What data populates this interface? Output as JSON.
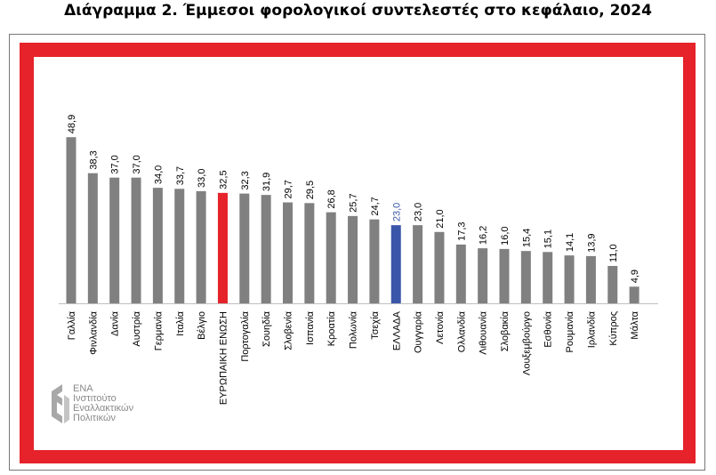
{
  "title": "Διάγραμμα 2. Έμμεσοι φορολογικοί συντελεστές στο κεφάλαιο, 2024",
  "logo": {
    "abbr": "ΕΝΑ",
    "line1": "Ινστιτούτο",
    "line2": "Εναλλακτικών",
    "line3": "Πολιτικών"
  },
  "colors": {
    "default": "#808080",
    "eu": "#e6222a",
    "greece": "#3a56a8",
    "frame": "#e6222a",
    "greece_label": "#3a56a8"
  },
  "chart_data": {
    "type": "bar",
    "title": "Διάγραμμα 2. Έμμεσοι φορολογικοί συντελεστές στο κεφάλαιο, 2024",
    "xlabel": "",
    "ylabel": "",
    "ylim": [
      0,
      52
    ],
    "grid": false,
    "categories": [
      "Γαλλία",
      "Φινλανδία",
      "Δανία",
      "Αυστρία",
      "Γερμανία",
      "Ιταλία",
      "Βέλγιο",
      "ΕΥΡΩΠΑΙΚΗ ΕΝΩΣΗ",
      "Πορτογαλία",
      "Σουηδία",
      "Σλοβενία",
      "Ισπανία",
      "Κροατία",
      "Πολωνία",
      "Τσεχία",
      "ΕΛΛΑΔΑ",
      "Ουγγαρία",
      "Λετονία",
      "Ολλανδία",
      "Λιθουανία",
      "Σλοβακία",
      "Λουξεμβούργο",
      "Εσθονία",
      "Ρουμανία",
      "Ιρλανδία",
      "Κύπρος",
      "Μάλτα"
    ],
    "values": [
      48.9,
      38.3,
      37.0,
      37.0,
      34.0,
      33.7,
      33.0,
      32.5,
      32.3,
      31.9,
      29.7,
      29.5,
      26.8,
      25.7,
      24.7,
      23.0,
      23.0,
      21.0,
      17.3,
      16.2,
      16.0,
      15.4,
      15.1,
      14.1,
      13.9,
      11.0,
      4.9
    ],
    "value_labels": [
      "48,9",
      "38,3",
      "37,0",
      "37,0",
      "34,0",
      "33,7",
      "33,0",
      "32,5",
      "32,3",
      "31,9",
      "29,7",
      "29,5",
      "26,8",
      "25,7",
      "24,7",
      "23,0",
      "23,0",
      "21,0",
      "17,3",
      "16,2",
      "16,0",
      "15,4",
      "15,1",
      "14,1",
      "13,9",
      "11,0",
      "4,9"
    ],
    "highlight": {
      "ΕΥΡΩΠΑΙΚΗ ΕΝΩΣΗ": "eu",
      "ΕΛΛΑΔΑ": "greece"
    }
  }
}
